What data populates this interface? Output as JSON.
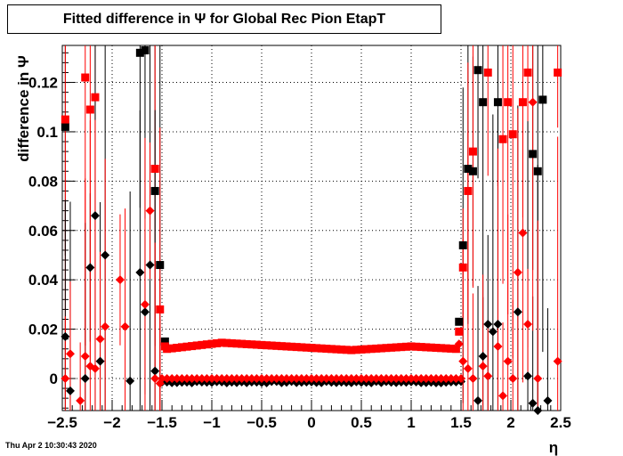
{
  "title": "Fitted difference in  Ψ  for Global Rec Pion EtapT",
  "footer": "Thu Apr  2 10:30:43 2020",
  "chart_data": {
    "type": "scatter",
    "xlabel": "η",
    "ylabel": "difference in  Ψ",
    "xlim": [
      -2.5,
      2.5
    ],
    "ylim": [
      -0.013,
      0.135
    ],
    "grid": true,
    "xticks": [
      "−2.5",
      "−2",
      "−1.5",
      "−1",
      "−0.5",
      "0",
      "0.5",
      "1",
      "1.5",
      "2",
      "2.5"
    ],
    "yticks": [
      "0",
      "0.02",
      "0.04",
      "0.06",
      "0.08",
      "0.1",
      "0.12"
    ],
    "colors": {
      "black": "#000000",
      "red": "#ff0000"
    },
    "series": [
      {
        "marker": "square",
        "color": "#000000",
        "points": [
          [
            -2.47,
            0.102
          ],
          [
            -1.72,
            0.132
          ],
          [
            -1.67,
            0.133
          ],
          [
            -1.57,
            0.076
          ],
          [
            -1.52,
            0.046
          ],
          [
            -1.47,
            0.015
          ],
          [
            1.48,
            0.023
          ],
          [
            1.52,
            0.054
          ],
          [
            1.57,
            0.085
          ],
          [
            1.62,
            0.084
          ],
          [
            1.67,
            0.125
          ],
          [
            1.72,
            0.112
          ],
          [
            1.87,
            0.112
          ],
          [
            2.22,
            0.091
          ],
          [
            2.27,
            0.084
          ],
          [
            2.32,
            0.113
          ]
        ]
      },
      {
        "marker": "square",
        "color": "#ff0000",
        "points": [
          [
            -2.47,
            0.105
          ],
          [
            -2.27,
            0.122
          ],
          [
            -2.22,
            0.109
          ],
          [
            -2.17,
            0.114
          ],
          [
            -1.57,
            0.085
          ],
          [
            -1.52,
            0.028
          ],
          [
            -1.47,
            0.013
          ],
          [
            1.48,
            0.019
          ],
          [
            1.52,
            0.045
          ],
          [
            1.57,
            0.076
          ],
          [
            1.62,
            0.092
          ],
          [
            1.77,
            0.124
          ],
          [
            1.92,
            0.097
          ],
          [
            1.97,
            0.112
          ],
          [
            2.02,
            0.099
          ],
          [
            2.12,
            0.112
          ],
          [
            2.17,
            0.124
          ],
          [
            2.47,
            0.124
          ]
        ]
      },
      {
        "marker": "diamond",
        "color": "#000000",
        "points": [
          [
            -2.47,
            0.017
          ],
          [
            -2.42,
            -0.005
          ],
          [
            -2.27,
            0.0
          ],
          [
            -2.22,
            0.045
          ],
          [
            -2.17,
            0.066
          ],
          [
            -2.12,
            0.007
          ],
          [
            -2.07,
            0.05
          ],
          [
            -1.82,
            -0.001
          ],
          [
            -1.72,
            0.043
          ],
          [
            -1.67,
            0.027
          ],
          [
            -1.62,
            0.046
          ],
          [
            -1.57,
            0.003
          ],
          [
            1.67,
            -0.009
          ],
          [
            1.72,
            0.009
          ],
          [
            1.77,
            0.022
          ],
          [
            1.82,
            0.019
          ],
          [
            1.87,
            0.022
          ],
          [
            2.07,
            0.027
          ],
          [
            2.17,
            0.001
          ],
          [
            2.22,
            -0.01
          ],
          [
            2.27,
            -0.013
          ],
          [
            2.37,
            -0.009
          ]
        ]
      },
      {
        "marker": "diamond",
        "color": "#ff0000",
        "points": [
          [
            -2.47,
            0.0
          ],
          [
            -2.42,
            0.01
          ],
          [
            -2.32,
            -0.009
          ],
          [
            -2.27,
            0.009
          ],
          [
            -2.22,
            0.005
          ],
          [
            -2.17,
            0.004
          ],
          [
            -2.12,
            0.016
          ],
          [
            -2.07,
            0.021
          ],
          [
            -1.92,
            0.04
          ],
          [
            -1.87,
            0.021
          ],
          [
            -1.67,
            0.03
          ],
          [
            -1.62,
            0.068
          ],
          [
            -1.57,
            0.0
          ],
          [
            -1.52,
            -0.002
          ],
          [
            1.48,
            0.014
          ],
          [
            1.52,
            0.007
          ],
          [
            1.57,
            0.004
          ],
          [
            1.62,
            0.0
          ],
          [
            1.72,
            0.005
          ],
          [
            1.77,
            0.001
          ],
          [
            1.87,
            0.013
          ],
          [
            1.92,
            -0.007
          ],
          [
            1.97,
            0.007
          ],
          [
            2.02,
            0.0
          ],
          [
            2.07,
            0.043
          ],
          [
            2.12,
            0.059
          ],
          [
            2.17,
            0.022
          ],
          [
            2.22,
            0.112
          ],
          [
            2.27,
            0.0
          ],
          [
            2.47,
            0.007
          ]
        ]
      }
    ],
    "center_band": {
      "red_squares": {
        "x_from": -1.45,
        "x_to": 1.45,
        "y_edge": 0.012,
        "y_mid": 0.0115,
        "y_peak": 0.0145,
        "x_peak": -0.9
      },
      "black_diamonds": {
        "x_from": -1.5,
        "x_to": 1.5,
        "y": -0.0015
      },
      "red_diamonds": {
        "x_from": -1.5,
        "x_to": 1.5,
        "y": 0.0
      }
    }
  }
}
